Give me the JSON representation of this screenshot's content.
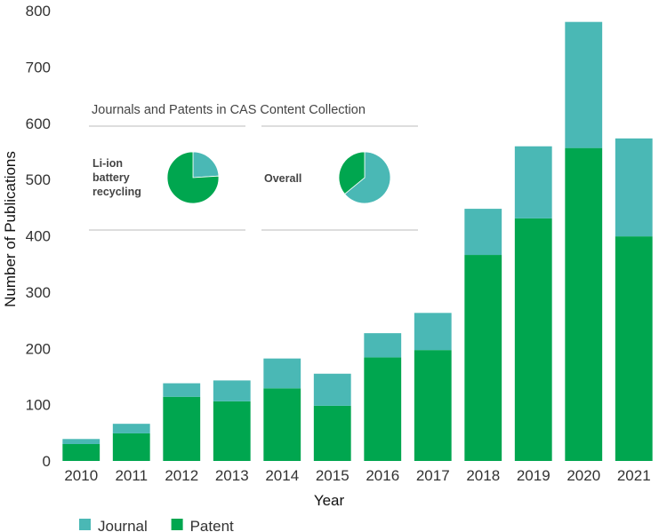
{
  "chart_data": {
    "type": "bar",
    "stacked": true,
    "title": "",
    "xlabel": "Year",
    "ylabel": "Number of Publications",
    "ylim": [
      0,
      800
    ],
    "yticks": [
      0,
      100,
      200,
      300,
      400,
      500,
      600,
      700,
      800
    ],
    "grid": false,
    "legend_position": "bottom-left",
    "categories": [
      "2010",
      "2011",
      "2012",
      "2013",
      "2014",
      "2015",
      "2016",
      "2017",
      "2018",
      "2019",
      "2020",
      "2021"
    ],
    "series": [
      {
        "name": "Patent",
        "color": "#00a64f",
        "values": [
          30,
          49,
          114,
          106,
          129,
          98,
          184,
          197,
          366,
          431,
          556,
          399
        ]
      },
      {
        "name": "Journal",
        "color": "#4ab8b5",
        "values": [
          9,
          17,
          24,
          37,
          53,
          57,
          43,
          66,
          82,
          128,
          224,
          174
        ]
      }
    ],
    "legend": [
      {
        "name": "Journal",
        "color": "#4ab8b5"
      },
      {
        "name": "Patent",
        "color": "#00a64f"
      }
    ],
    "inset": {
      "title": "Journals and Patents in CAS Content Collection",
      "type": "pie",
      "pies": [
        {
          "label_lines": [
            "Li-ion",
            "battery",
            "recycling"
          ],
          "slices": [
            {
              "name": "Journal",
              "value": 24
            },
            {
              "name": "Patent",
              "value": 76
            }
          ]
        },
        {
          "label_lines": [
            "Overall"
          ],
          "slices": [
            {
              "name": "Journal",
              "value": 64
            },
            {
              "name": "Patent",
              "value": 36
            }
          ]
        }
      ]
    }
  }
}
